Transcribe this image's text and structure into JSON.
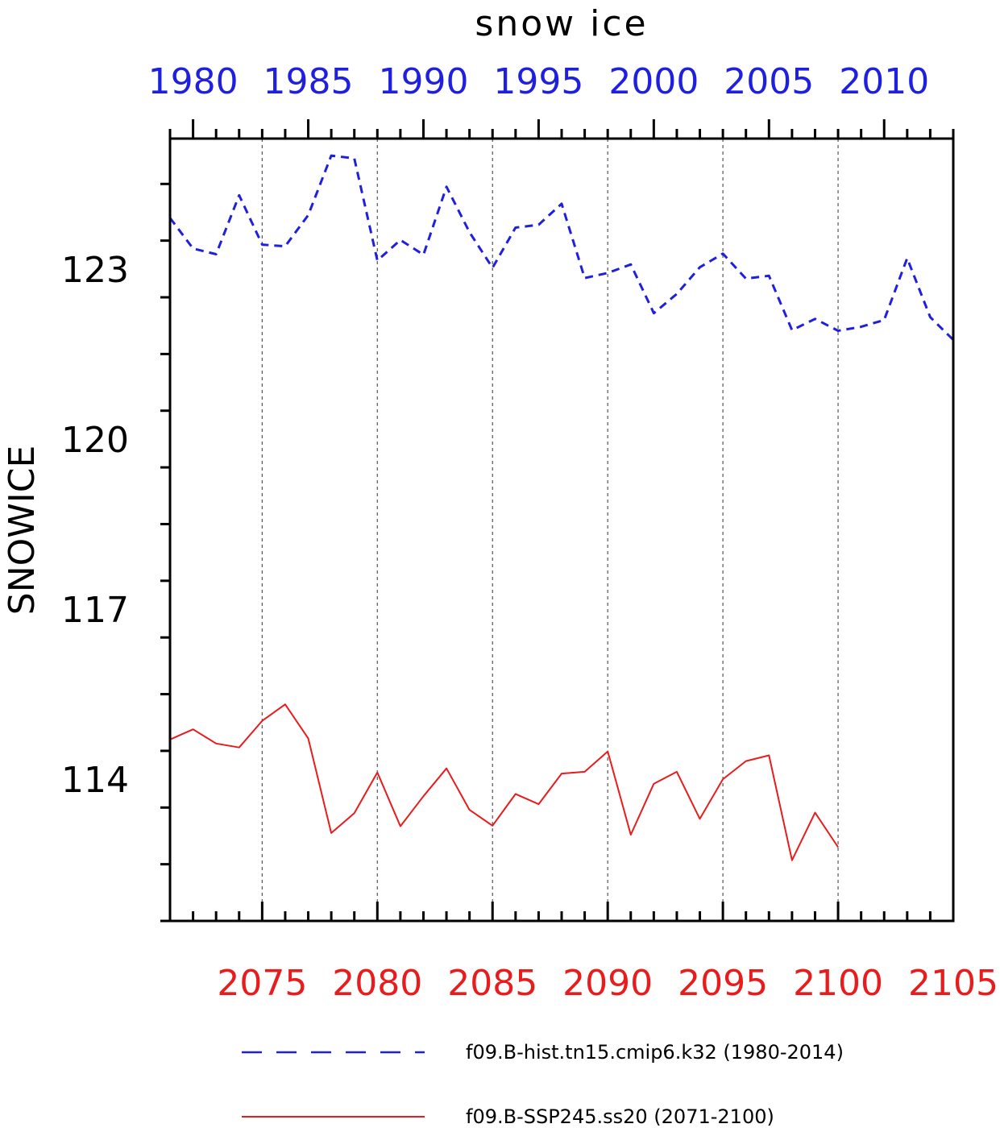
{
  "chart_data": {
    "type": "line",
    "title": "snow ice",
    "ylabel": "SNOWICE",
    "ylim": [
      111.5,
      125.3
    ],
    "yticks": [
      114,
      117,
      120,
      123
    ],
    "top_axis": {
      "color": "#1f1fe0",
      "range": [
        1979,
        2013
      ],
      "tick_labels": [
        "1980",
        "1985",
        "1990",
        "1995",
        "2000",
        "2005",
        "2010"
      ],
      "tick_values": [
        1980,
        1985,
        1990,
        1995,
        2000,
        2005,
        2010
      ]
    },
    "bottom_axis": {
      "color": "#e81c1c",
      "range": [
        2071,
        2105
      ],
      "tick_labels": [
        "2075",
        "2080",
        "2085",
        "2090",
        "2095",
        "2100",
        "2105"
      ],
      "tick_values": [
        2075,
        2080,
        2085,
        2090,
        2095,
        2100,
        2105
      ]
    },
    "grid": "vertical dashed at major ticks",
    "series": [
      {
        "name": "f09.B-hist.tn15.cmip6.k32 (1980-2014)",
        "color": "#1f1fe0",
        "style": "dashed",
        "axis": "top",
        "x": [
          1979,
          1980,
          1981,
          1982,
          1983,
          1984,
          1985,
          1986,
          1987,
          1988,
          1989,
          1990,
          1991,
          1992,
          1993,
          1994,
          1995,
          1996,
          1997,
          1998,
          1999,
          2000,
          2001,
          2002,
          2003,
          2004,
          2005,
          2006,
          2007,
          2008,
          2009,
          2010,
          2011,
          2012,
          2013
        ],
        "y": [
          123.9,
          123.36,
          123.26,
          124.3,
          123.43,
          123.4,
          123.95,
          125.0,
          124.95,
          123.15,
          123.51,
          123.25,
          124.45,
          123.65,
          123.02,
          123.73,
          123.78,
          124.15,
          122.84,
          122.93,
          123.08,
          122.22,
          122.56,
          123.03,
          123.27,
          122.83,
          122.88,
          121.92,
          122.12,
          121.91,
          121.98,
          122.1,
          123.19,
          122.15,
          121.75
        ]
      },
      {
        "name": "f09.B-SSP245.ss20 (2071-2100)",
        "color": "#e81c1c",
        "style": "solid",
        "axis": "bottom",
        "x": [
          2071,
          2072,
          2073,
          2074,
          2075,
          2076,
          2077,
          2078,
          2079,
          2080,
          2081,
          2082,
          2083,
          2084,
          2085,
          2086,
          2087,
          2088,
          2089,
          2090,
          2091,
          2092,
          2093,
          2094,
          2095,
          2096,
          2097,
          2098,
          2099,
          2100
        ],
        "y": [
          114.7,
          114.88,
          114.63,
          114.56,
          115.03,
          115.32,
          114.72,
          113.05,
          113.4,
          114.12,
          113.17,
          113.7,
          114.19,
          113.46,
          113.18,
          113.74,
          113.56,
          114.1,
          114.13,
          114.49,
          113.02,
          113.92,
          114.13,
          113.3,
          114.0,
          114.32,
          114.42,
          112.57,
          113.41,
          112.8
        ]
      }
    ]
  }
}
